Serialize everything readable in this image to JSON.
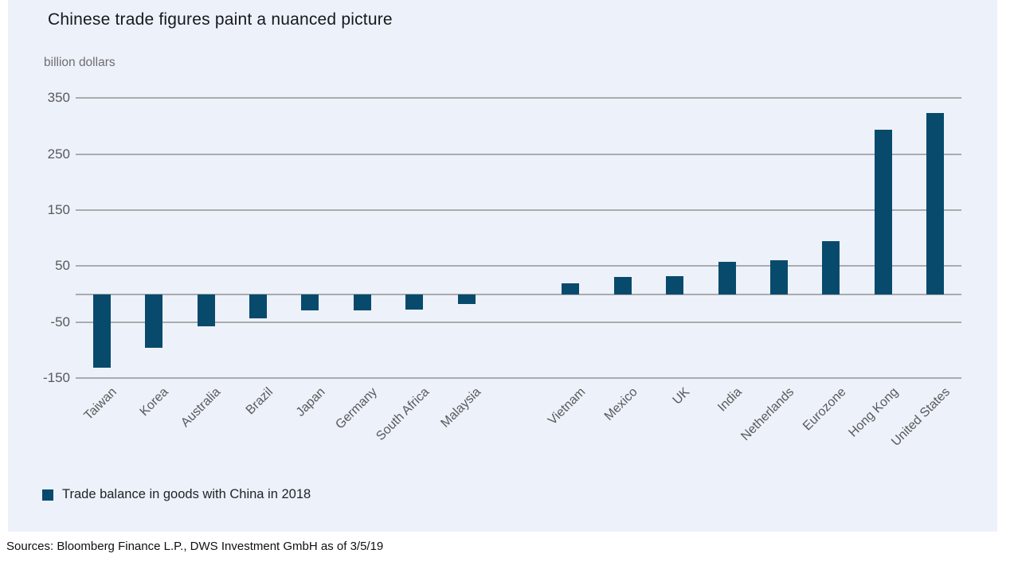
{
  "header": {
    "title": "Chinese trade figures paint a nuanced picture",
    "units_label": "billion dollars"
  },
  "legend": {
    "label": "Trade balance in goods with China in 2018"
  },
  "footer": {
    "source": "Sources: Bloomberg Finance L.P., DWS Investment GmbH as of 3/5/19"
  },
  "colors": {
    "bar": "#084A6C",
    "panel_background": "#EDF1F9",
    "gridline": "#A9ABAE",
    "axis_text": "#58595B",
    "title_text": "#15191D",
    "page_background": "#FFFFFF"
  },
  "chart_data": {
    "type": "bar",
    "title": "Chinese trade figures paint a nuanced picture",
    "ylabel": "billion dollars",
    "xlabel": "",
    "categories": [
      "Taiwan",
      "Korea",
      "Australia",
      "Brazil",
      "Japan",
      "Germany",
      "South Africa",
      "Malaysia",
      "Vietnam",
      "Mexico",
      "UK",
      "India",
      "Netherlands",
      "Eurozone",
      "Hong Kong",
      "United States"
    ],
    "values": [
      -131,
      -96,
      -58,
      -43,
      -29,
      -29,
      -28,
      -17,
      20,
      30,
      32,
      58,
      60,
      95,
      293,
      323
    ],
    "series_name": "Trade balance in goods with China in 2018",
    "yticks": [
      350,
      250,
      150,
      50,
      -50,
      -150
    ],
    "ylim": [
      -150,
      350
    ],
    "grid": true,
    "legend_position": "bottom-left",
    "layout_hints": {
      "gap_after_category_index": 7,
      "x_labels_rotated_degrees": -45
    }
  }
}
